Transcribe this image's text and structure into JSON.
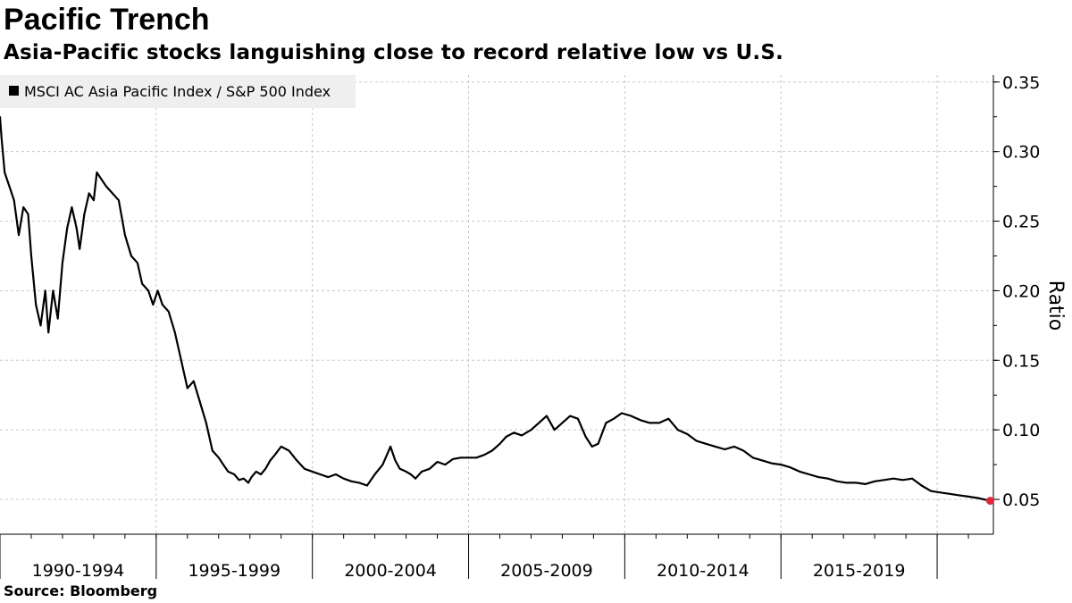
{
  "header": {
    "title": "Pacific Trench",
    "subtitle": "Asia-Pacific stocks languishing close to record relative low vs U.S."
  },
  "footer": {
    "source": "Source: Bloomberg"
  },
  "colors": {
    "line": "#000000",
    "last_point": "#e0283c",
    "grid": "#c8c8c8",
    "legend_bg": "#efefef"
  },
  "chart_data": {
    "type": "line",
    "title": "Pacific Trench",
    "subtitle": "Asia-Pacific stocks languishing close to record relative low vs U.S.",
    "ylabel": "Ratio",
    "xlabel": "",
    "y_axis_side": "right",
    "ylim": [
      0.025,
      0.355
    ],
    "yticks": [
      0.05,
      0.1,
      0.15,
      0.2,
      0.25,
      0.3,
      0.35
    ],
    "ytick_labels": [
      "0.05",
      "0.10",
      "0.15",
      "0.20",
      "0.25",
      "0.30",
      "0.35"
    ],
    "xlim": [
      1990.0,
      2021.8
    ],
    "categories": [
      "1990-1994",
      "1995-1999",
      "2000-2004",
      "2005-2009",
      "2010-2014",
      "2015-2019"
    ],
    "category_bounds": [
      1990,
      1995,
      2000,
      2005,
      2010,
      2015,
      2020
    ],
    "grid": true,
    "legend": {
      "position": "top-left",
      "entries": [
        "MSCI AC Asia Pacific Index / S&P 500 Index"
      ]
    },
    "series": [
      {
        "name": "MSCI AC Asia Pacific Index / S&P 500 Index",
        "x": [
          1990.0,
          1990.05,
          1990.15,
          1990.3,
          1990.45,
          1990.6,
          1990.75,
          1990.9,
          1991.0,
          1991.15,
          1991.3,
          1991.45,
          1991.55,
          1991.7,
          1991.85,
          1992.0,
          1992.15,
          1992.3,
          1992.45,
          1992.55,
          1992.7,
          1992.85,
          1993.0,
          1993.1,
          1993.25,
          1993.4,
          1993.6,
          1993.8,
          1994.0,
          1994.2,
          1994.4,
          1994.55,
          1994.75,
          1994.9,
          1995.05,
          1995.2,
          1995.4,
          1995.6,
          1995.8,
          1996.0,
          1996.2,
          1996.4,
          1996.6,
          1996.8,
          1997.0,
          1997.15,
          1997.3,
          1997.5,
          1997.65,
          1997.8,
          1997.95,
          1998.05,
          1998.2,
          1998.35,
          1998.5,
          1998.65,
          1998.8,
          1999.0,
          1999.25,
          1999.5,
          1999.75,
          2000.0,
          2000.25,
          2000.5,
          2000.75,
          2001.0,
          2001.25,
          2001.5,
          2001.75,
          2002.0,
          2002.25,
          2002.5,
          2002.65,
          2002.8,
          2003.0,
          2003.15,
          2003.3,
          2003.5,
          2003.75,
          2004.0,
          2004.25,
          2004.5,
          2004.75,
          2005.0,
          2005.25,
          2005.5,
          2005.75,
          2006.0,
          2006.2,
          2006.45,
          2006.7,
          2007.0,
          2007.25,
          2007.5,
          2007.75,
          2008.0,
          2008.25,
          2008.5,
          2008.75,
          2008.95,
          2009.15,
          2009.4,
          2009.65,
          2009.9,
          2010.2,
          2010.5,
          2010.8,
          2011.1,
          2011.4,
          2011.7,
          2012.0,
          2012.3,
          2012.6,
          2012.9,
          2013.2,
          2013.5,
          2013.8,
          2014.1,
          2014.4,
          2014.7,
          2015.0,
          2015.3,
          2015.6,
          2015.9,
          2016.2,
          2016.5,
          2016.8,
          2017.1,
          2017.4,
          2017.7,
          2018.0,
          2018.3,
          2018.6,
          2018.9,
          2019.2,
          2019.5,
          2019.8,
          2020.1,
          2020.4,
          2020.7,
          2021.0,
          2021.3,
          2021.5,
          2021.7
        ],
        "values": [
          0.325,
          0.31,
          0.285,
          0.275,
          0.265,
          0.24,
          0.26,
          0.255,
          0.225,
          0.19,
          0.175,
          0.2,
          0.17,
          0.2,
          0.18,
          0.22,
          0.245,
          0.26,
          0.245,
          0.23,
          0.255,
          0.27,
          0.265,
          0.285,
          0.28,
          0.275,
          0.27,
          0.265,
          0.24,
          0.225,
          0.22,
          0.205,
          0.2,
          0.19,
          0.2,
          0.19,
          0.185,
          0.17,
          0.15,
          0.13,
          0.135,
          0.12,
          0.105,
          0.085,
          0.08,
          0.075,
          0.07,
          0.068,
          0.064,
          0.065,
          0.062,
          0.066,
          0.07,
          0.068,
          0.072,
          0.078,
          0.082,
          0.088,
          0.085,
          0.078,
          0.072,
          0.07,
          0.068,
          0.066,
          0.068,
          0.065,
          0.063,
          0.062,
          0.06,
          0.068,
          0.075,
          0.088,
          0.078,
          0.072,
          0.07,
          0.068,
          0.065,
          0.07,
          0.072,
          0.077,
          0.075,
          0.079,
          0.08,
          0.08,
          0.08,
          0.082,
          0.085,
          0.09,
          0.095,
          0.098,
          0.096,
          0.1,
          0.105,
          0.11,
          0.1,
          0.105,
          0.11,
          0.108,
          0.095,
          0.088,
          0.09,
          0.105,
          0.108,
          0.112,
          0.11,
          0.107,
          0.105,
          0.105,
          0.108,
          0.1,
          0.097,
          0.092,
          0.09,
          0.088,
          0.086,
          0.088,
          0.085,
          0.08,
          0.078,
          0.076,
          0.075,
          0.073,
          0.07,
          0.068,
          0.066,
          0.065,
          0.063,
          0.062,
          0.062,
          0.061,
          0.063,
          0.064,
          0.065,
          0.064,
          0.065,
          0.06,
          0.056,
          0.055,
          0.054,
          0.053,
          0.052,
          0.051,
          0.05,
          0.049
        ]
      }
    ],
    "last_point": {
      "x": 2021.7,
      "y": 0.049
    }
  }
}
